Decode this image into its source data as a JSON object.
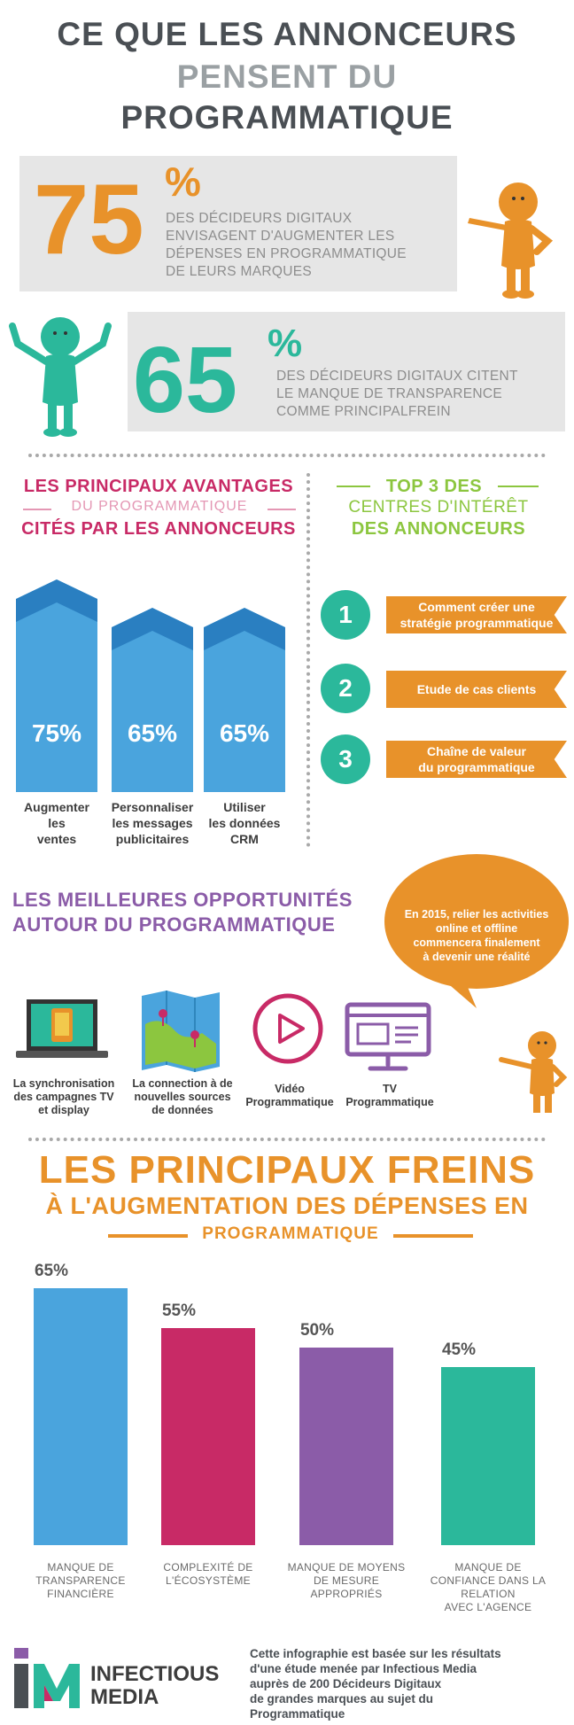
{
  "header": {
    "line1": "CE QUE LES ANNONCEURS",
    "line2": "PENSENT DU",
    "line3": "PROGRAMMATIQUE"
  },
  "stat1": {
    "number": "75",
    "percent_sign": "%",
    "text_lines": [
      "DES DÉCIDEURS DIGITAUX",
      "ENVISAGENT D'AUGMENTER LES",
      "DÉPENSES EN PROGRAMMATIQUE",
      "DE LEURS MARQUES"
    ],
    "color": "#e8922a"
  },
  "stat2": {
    "number": "65",
    "percent_sign": "%",
    "text_lines": [
      "DES DÉCIDEURS DIGITAUX CITENT",
      "LE MANQUE DE TRANSPARENCE",
      "COMME PRINCIPALFREIN"
    ],
    "color": "#2bb89b"
  },
  "advantages": {
    "title1": "LES PRINCIPAUX AVANTAGES",
    "subtitle": "DU PROGRAMMATIQUE",
    "title2": "CITÉS PAR LES ANNONCEURS",
    "color": "#c82a66",
    "items": [
      {
        "value": "75%",
        "fraction": 0.75,
        "label_lines": [
          "Augmenter",
          "les",
          "ventes"
        ]
      },
      {
        "value": "65%",
        "fraction": 0.65,
        "label_lines": [
          "Personnaliser",
          "les messages",
          "publicitaires"
        ]
      },
      {
        "value": "65%",
        "fraction": 0.65,
        "label_lines": [
          "Utiliser",
          "les données",
          "CRM"
        ]
      }
    ]
  },
  "top3": {
    "title1": "TOP 3 DES",
    "title2": "CENTRES D'INTÉRÊT",
    "title3": "DES ANNONCEURS",
    "color": "#8cc63f",
    "items": [
      {
        "num": "1",
        "lines": [
          "Comment créer une",
          "stratégie programmatique"
        ]
      },
      {
        "num": "2",
        "lines": [
          "Etude de cas clients"
        ]
      },
      {
        "num": "3",
        "lines": [
          "Chaîne de valeur",
          "du programmatique"
        ]
      }
    ]
  },
  "opportunities": {
    "title1": "LES MEILLEURES OPPORTUNITÉS",
    "title2": "AUTOUR DU PROGRAMMATIQUE",
    "color": "#8b5ca8",
    "bubble_lines": [
      "En 2015, relier les activities",
      "online et offline",
      "commencera finalement",
      "à devenir une réalité"
    ],
    "items": [
      {
        "icon": "laptop-icon",
        "lines": [
          "La synchronisation",
          "des campagnes TV",
          "et display"
        ]
      },
      {
        "icon": "map-icon",
        "lines": [
          "La connection à de",
          "nouvelles sources",
          "de données"
        ]
      },
      {
        "icon": "play-icon",
        "lines": [
          "Vidéo",
          "Programmatique"
        ]
      },
      {
        "icon": "tv-icon",
        "lines": [
          "TV",
          "Programmatique"
        ]
      }
    ]
  },
  "barriers": {
    "title1": "LES PRINCIPAUX FREINS",
    "title2": "À L'AUGMENTATION DES DÉPENSES EN",
    "title3": "PROGRAMMATIQUE",
    "color": "#e8922a",
    "chart_data": {
      "type": "bar",
      "categories": [
        "MANQUE DE TRANSPARENCE FINANCIÈRE",
        "COMPLEXITÉ DE L'ÉCOSYSTÈME",
        "MANQUE DE MOYENS DE MESURE APPROPRIÉS",
        "MANQUE DE CONFIANCE DANS LA RELATION AVEC L'AGENCE"
      ],
      "values": [
        65,
        55,
        50,
        45
      ],
      "value_labels": [
        "65%",
        "55%",
        "50%",
        "45%"
      ],
      "colors": [
        "#4aa4dd",
        "#c82a66",
        "#8b5ca8",
        "#2bb89b"
      ],
      "label_lines": [
        [
          "MANQUE DE",
          "TRANSPARENCE",
          "FINANCIÈRE"
        ],
        [
          "COMPLEXITÉ DE",
          "L'ÉCOSYSTÈME"
        ],
        [
          "MANQUE DE MOYENS",
          "DE MESURE",
          "APPROPRIÉS"
        ],
        [
          "MANQUE DE",
          "CONFIANCE DANS LA",
          "RELATION",
          "AVEC L'AGENCE"
        ]
      ]
    }
  },
  "footer": {
    "logo_text_1": "INFECTIOUS",
    "logo_text_2": "MEDIA",
    "note_lines": [
      "Cette infographie est basée sur les résultats",
      "d'une étude menée par Infectious Media",
      "auprès de 200 Décideurs Digitaux",
      "de grandes marques au sujet du",
      "Programmatique"
    ]
  }
}
